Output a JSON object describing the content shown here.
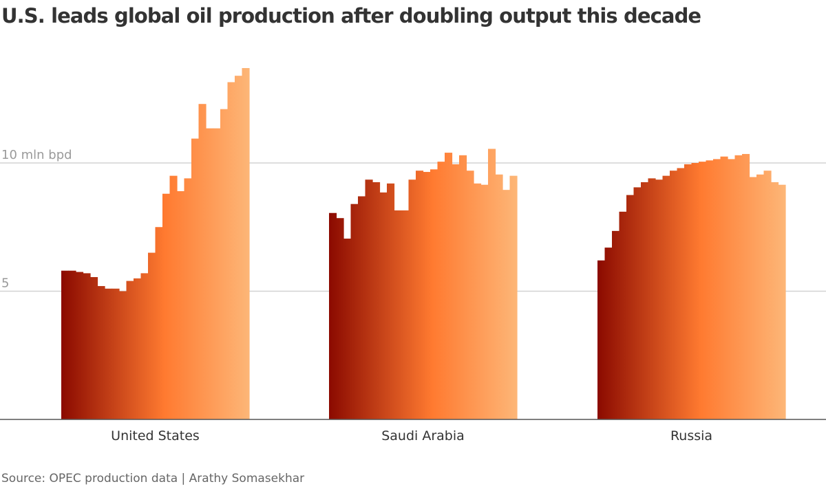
{
  "title": "U.S. leads global oil production after doubling output this decade",
  "source": "Source: OPEC production data | Arathy Somasekhar",
  "chart_data": {
    "type": "bar",
    "title": "U.S. leads global oil production after doubling output this decade",
    "xlabel": "",
    "ylabel": "",
    "unit": "mln bpd",
    "ylim": [
      0,
      15
    ],
    "yticks": [
      {
        "value": 5,
        "label": "5"
      },
      {
        "value": 10,
        "label": "10 mln bpd"
      }
    ],
    "grid": true,
    "legend": "none",
    "color_gradient": [
      "#8b0a00",
      "#ff7a30",
      "#fdb677"
    ],
    "series": [
      {
        "name": "United States",
        "values": [
          5.8,
          5.8,
          5.75,
          5.7,
          5.55,
          5.2,
          5.1,
          5.1,
          5.0,
          5.4,
          5.5,
          5.7,
          6.5,
          7.5,
          8.8,
          9.5,
          8.9,
          9.4,
          10.95,
          12.3,
          11.35,
          11.35,
          12.1,
          13.15,
          13.4,
          13.7
        ]
      },
      {
        "name": "Saudi Arabia",
        "values": [
          8.05,
          7.85,
          7.05,
          8.4,
          8.7,
          9.35,
          9.25,
          8.85,
          9.2,
          8.15,
          8.15,
          9.35,
          9.7,
          9.65,
          9.75,
          10.05,
          10.4,
          9.95,
          10.3,
          9.7,
          9.2,
          9.15,
          10.55,
          9.55,
          8.95,
          9.5
        ]
      },
      {
        "name": "Russia",
        "values": [
          6.2,
          6.7,
          7.35,
          8.1,
          8.75,
          9.05,
          9.25,
          9.4,
          9.35,
          9.5,
          9.7,
          9.8,
          9.95,
          10.0,
          10.05,
          10.1,
          10.15,
          10.25,
          10.15,
          10.3,
          10.35,
          9.45,
          9.55,
          9.7,
          9.25,
          9.15
        ]
      }
    ]
  }
}
